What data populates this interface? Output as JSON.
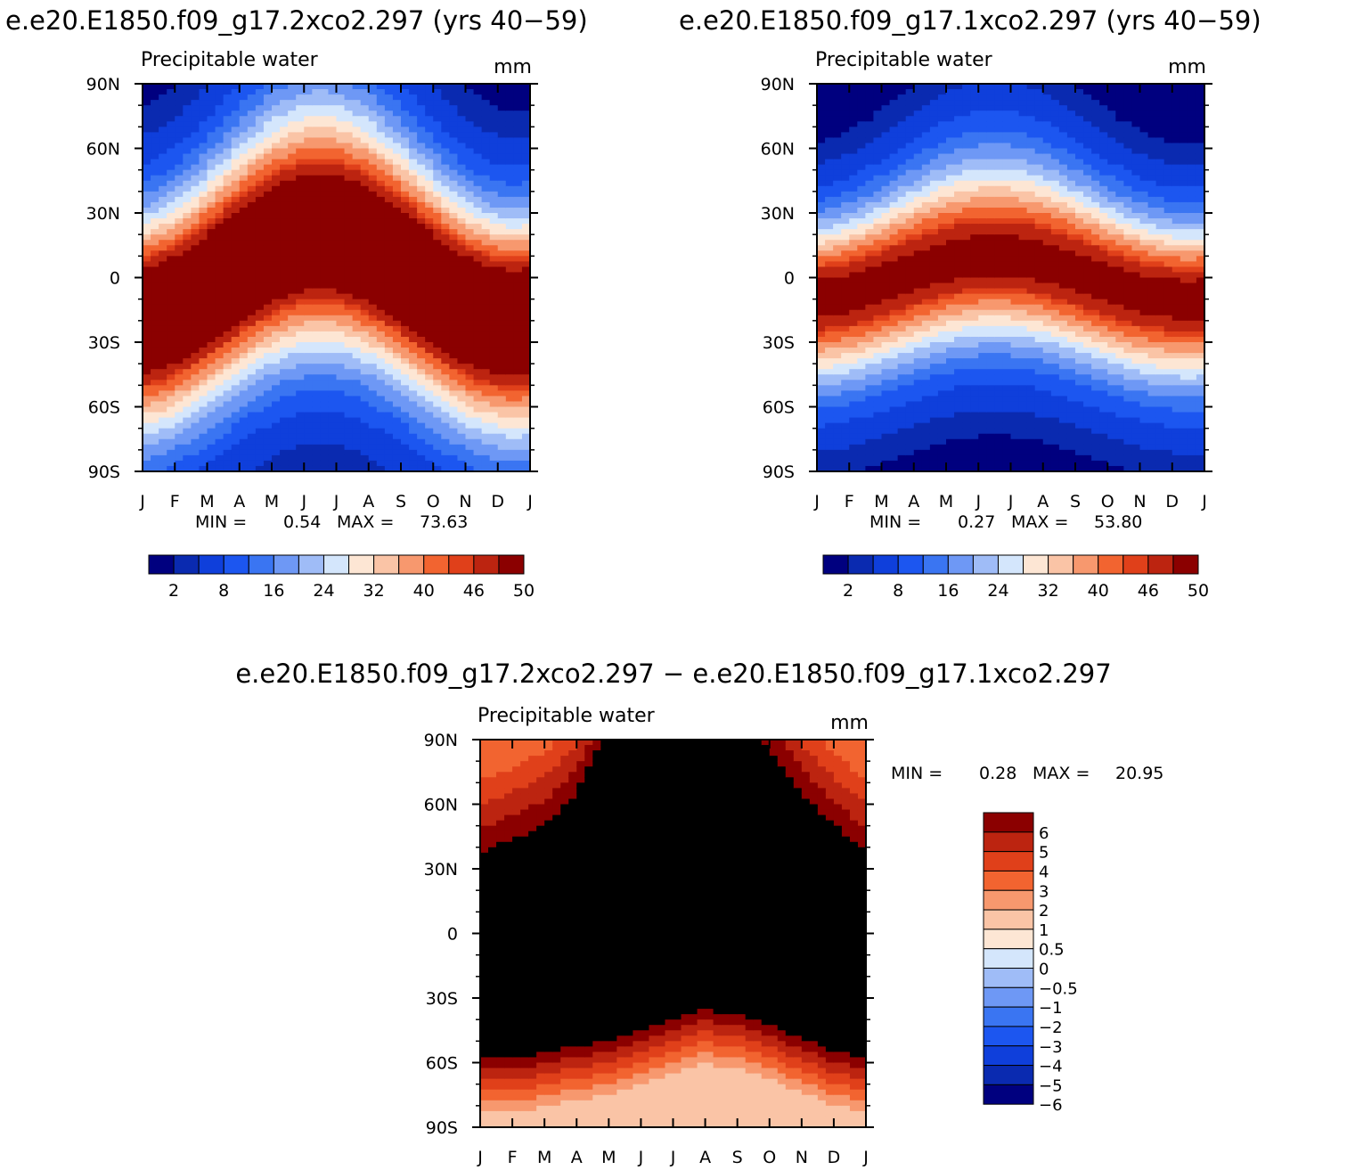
{
  "figure": {
    "top_left_title": "e.e20.E1850.f09_g17.2xco2.297 (yrs 40−59)",
    "top_right_title": "e.e20.E1850.f09_g17.1xco2.297 (yrs 40−59)",
    "bottom_title": "e.e20.E1850.f09_g17.2xco2.297 − e.e20.E1850.f09_g17.1xco2.297"
  },
  "chart_data": [
    {
      "type": "heatmap",
      "title": "e.e20.E1850.f09_g17.2xco2.297 (yrs 40−59)",
      "variable": "Precipitable water",
      "units": "mm",
      "x_ticks": [
        "J",
        "F",
        "M",
        "A",
        "M",
        "J",
        "J",
        "A",
        "S",
        "O",
        "N",
        "D",
        "J"
      ],
      "y_ticks": [
        "90N",
        "60N",
        "30N",
        "0",
        "30S",
        "60S",
        "90S"
      ],
      "min_label": "MIN =",
      "min_value": "0.54",
      "max_label": "MAX =",
      "max_value": "73.63",
      "colorbar_labels": [
        "2",
        "8",
        "16",
        "24",
        "32",
        "40",
        "46",
        "50"
      ],
      "colors": [
        "#00007f",
        "#0a2ab0",
        "#0f3fdb",
        "#1c56f0",
        "#3a75f2",
        "#6e98f5",
        "#9fbcf7",
        "#d4e6fc",
        "#fde6d4",
        "#fac4a6",
        "#f7986e",
        "#f26430",
        "#e0401a",
        "#bc2410",
        "#8b0000"
      ],
      "thresholds": [
        2,
        4,
        8,
        12,
        16,
        20,
        24,
        28,
        32,
        36,
        40,
        44,
        46,
        50
      ],
      "field": {
        "months": [
          0,
          1,
          2,
          3,
          4,
          5,
          6,
          7,
          8,
          9,
          10,
          11,
          12
        ],
        "amp_deg": 20,
        "base_deg": 0,
        "core_deg": 12,
        "core_value": 58,
        "decay_deg": 45,
        "polar_min": 0.5,
        "north_boost": 0
      }
    },
    {
      "type": "heatmap",
      "title": "e.e20.E1850.f09_g17.1xco2.297 (yrs 40−59)",
      "variable": "Precipitable water",
      "units": "mm",
      "x_ticks": [
        "J",
        "F",
        "M",
        "A",
        "M",
        "J",
        "J",
        "A",
        "S",
        "O",
        "N",
        "D",
        "J"
      ],
      "y_ticks": [
        "90N",
        "60N",
        "30N",
        "0",
        "30S",
        "60S",
        "90S"
      ],
      "min_label": "MIN =",
      "min_value": "0.27",
      "max_label": "MAX =",
      "max_value": "53.80",
      "colorbar_labels": [
        "2",
        "8",
        "16",
        "24",
        "32",
        "40",
        "46",
        "50"
      ],
      "colors": [
        "#00007f",
        "#0a2ab0",
        "#0f3fdb",
        "#1c56f0",
        "#3a75f2",
        "#6e98f5",
        "#9fbcf7",
        "#d4e6fc",
        "#fde6d4",
        "#fac4a6",
        "#f7986e",
        "#f26430",
        "#e0401a",
        "#bc2410",
        "#8b0000"
      ],
      "thresholds": [
        2,
        4,
        8,
        12,
        16,
        20,
        24,
        28,
        32,
        36,
        40,
        44,
        46,
        50
      ],
      "field": {
        "months": [
          0,
          1,
          2,
          3,
          4,
          5,
          6,
          7,
          8,
          9,
          10,
          11,
          12
        ],
        "amp_deg": 10,
        "base_deg": 0,
        "core_deg": 6,
        "core_value": 51,
        "decay_deg": 36,
        "polar_min": 0.3,
        "north_boost": 0
      }
    },
    {
      "type": "heatmap",
      "title": "e.e20.E1850.f09_g17.2xco2.297 − e.e20.E1850.f09_g17.1xco2.297",
      "variable": "Precipitable water",
      "units": "mm",
      "x_ticks": [
        "J",
        "F",
        "M",
        "A",
        "M",
        "J",
        "J",
        "A",
        "S",
        "O",
        "N",
        "D",
        "J"
      ],
      "y_ticks": [
        "90N",
        "60N",
        "30N",
        "0",
        "30S",
        "60S",
        "90S"
      ],
      "min_label": "MIN =",
      "min_value": "0.28",
      "max_label": "MAX =",
      "max_value": "20.95",
      "colorbar_labels": [
        "6",
        "5",
        "4",
        "3",
        "2",
        "1",
        "0.5",
        "0",
        "−0.5",
        "−1",
        "−2",
        "−3",
        "−4",
        "−5",
        "−6"
      ],
      "colors": [
        "#00007f",
        "#0a2ab0",
        "#0f3fdb",
        "#1c56f0",
        "#3a75f2",
        "#6e98f5",
        "#9fbcf7",
        "#d4e6fc",
        "#fde6d4",
        "#fac4a6",
        "#f7986e",
        "#f26430",
        "#e0401a",
        "#bc2410",
        "#8b0000"
      ],
      "thresholds": [
        -6,
        -5,
        -4,
        -3,
        -2,
        -1,
        -0.5,
        0,
        0.5,
        1,
        2,
        3,
        4,
        5,
        6
      ],
      "field": {
        "months": [
          0,
          1,
          2,
          3,
          4,
          5,
          6,
          7,
          8,
          9,
          10,
          11,
          12
        ],
        "north_edge_deg": [
          32,
          38,
          45,
          60,
          90,
          90,
          90,
          90,
          90,
          80,
          60,
          45,
          32
        ],
        "south_edge_deg": [
          -55,
          -55,
          -53,
          -50,
          -47,
          -42,
          -37,
          -33,
          -35,
          -40,
          -46,
          -52,
          -55
        ]
      }
    }
  ]
}
